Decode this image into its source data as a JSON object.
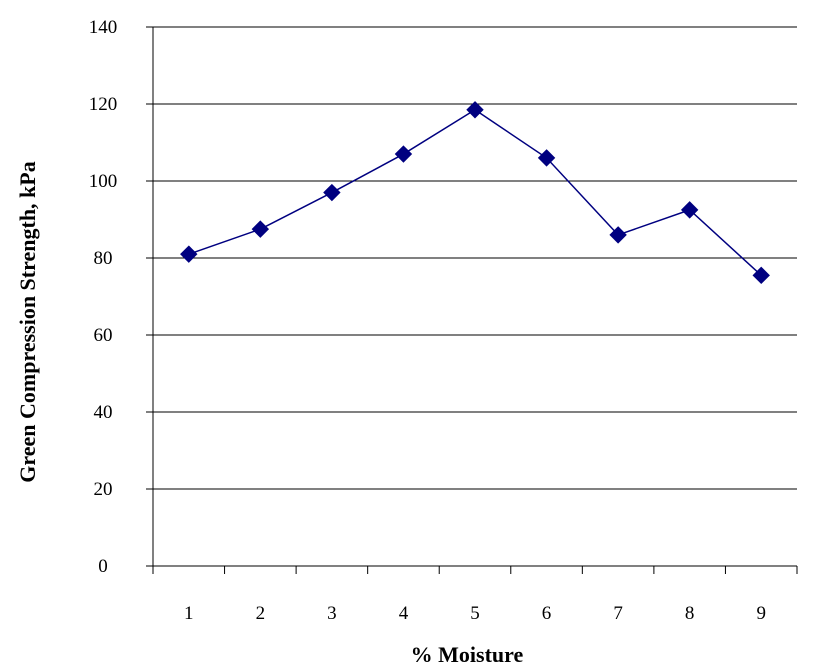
{
  "chart_data": {
    "type": "line",
    "title": "",
    "xlabel": "% Moisture",
    "ylabel": "Green Compression Strength, kPa",
    "categories": [
      "1",
      "2",
      "3",
      "4",
      "5",
      "6",
      "7",
      "8",
      "9"
    ],
    "series": [
      {
        "values": [
          81,
          87.5,
          97,
          107,
          118.5,
          106,
          86,
          92.5,
          75.5
        ]
      }
    ],
    "ylim": [
      0,
      140
    ],
    "yticks": [
      "0",
      "20",
      "40",
      "60",
      "80",
      "100",
      "120",
      "140"
    ],
    "grid": "horizontal",
    "legend": "none",
    "series_color": "#000080",
    "marker": "diamond"
  }
}
